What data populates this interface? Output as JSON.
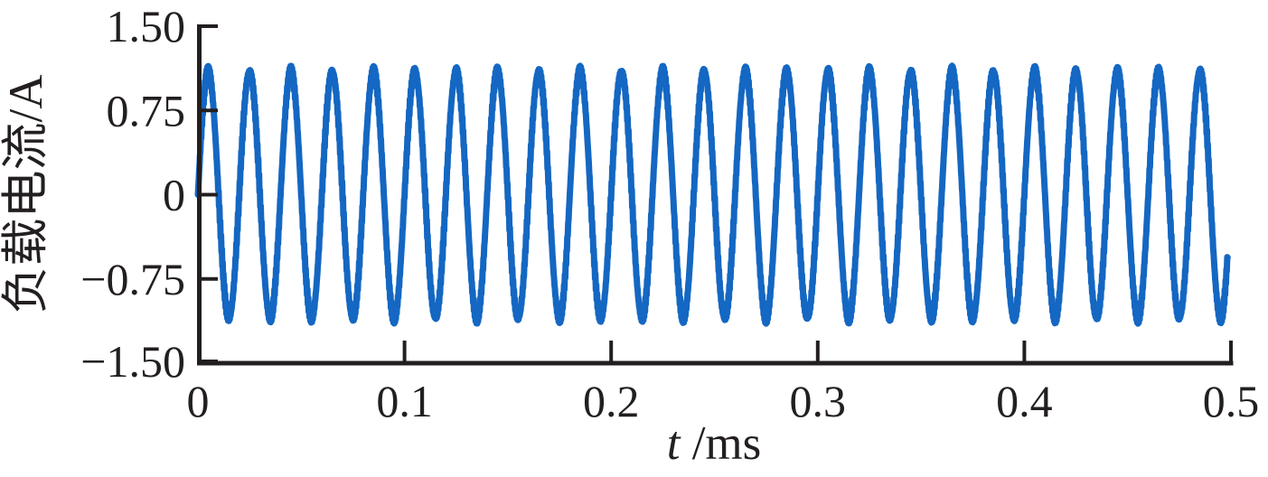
{
  "figure": {
    "background": "#ffffff",
    "axis_color": "#231f20",
    "text_color": "#231f20"
  },
  "chart_data": {
    "type": "line",
    "title": "",
    "xlabel": "t /ms",
    "xlabel_var": "t",
    "xlabel_unit": " /ms",
    "ylabel": "负载电流/A",
    "xlim": [
      0,
      0.5
    ],
    "ylim": [
      -1.5,
      1.5
    ],
    "x_ticks": [
      0,
      0.1,
      0.2,
      0.3,
      0.4,
      0.5
    ],
    "x_tick_labels": [
      "0",
      "0.1",
      "0.2",
      "0.3",
      "0.4",
      "0.5"
    ],
    "y_ticks": [
      1.5,
      0.75,
      0,
      -0.75,
      -1.5
    ],
    "y_tick_labels": [
      "1.50",
      "0.75",
      "0",
      "−0.75",
      "−1.50"
    ],
    "grid": false,
    "legend": false,
    "series": [
      {
        "name": "load-current",
        "color": "#1467C2",
        "waveform": "sine",
        "amplitude_A": 1.1,
        "frequency_kHz": 50,
        "period_ms": 0.02,
        "phase_deg": 0,
        "t_start_ms": 0,
        "t_end_ms": 0.4985,
        "ripple_amplitude_A": 0.048,
        "ripple_period_ms": 0.00041,
        "cycles_visible": 25
      }
    ]
  }
}
